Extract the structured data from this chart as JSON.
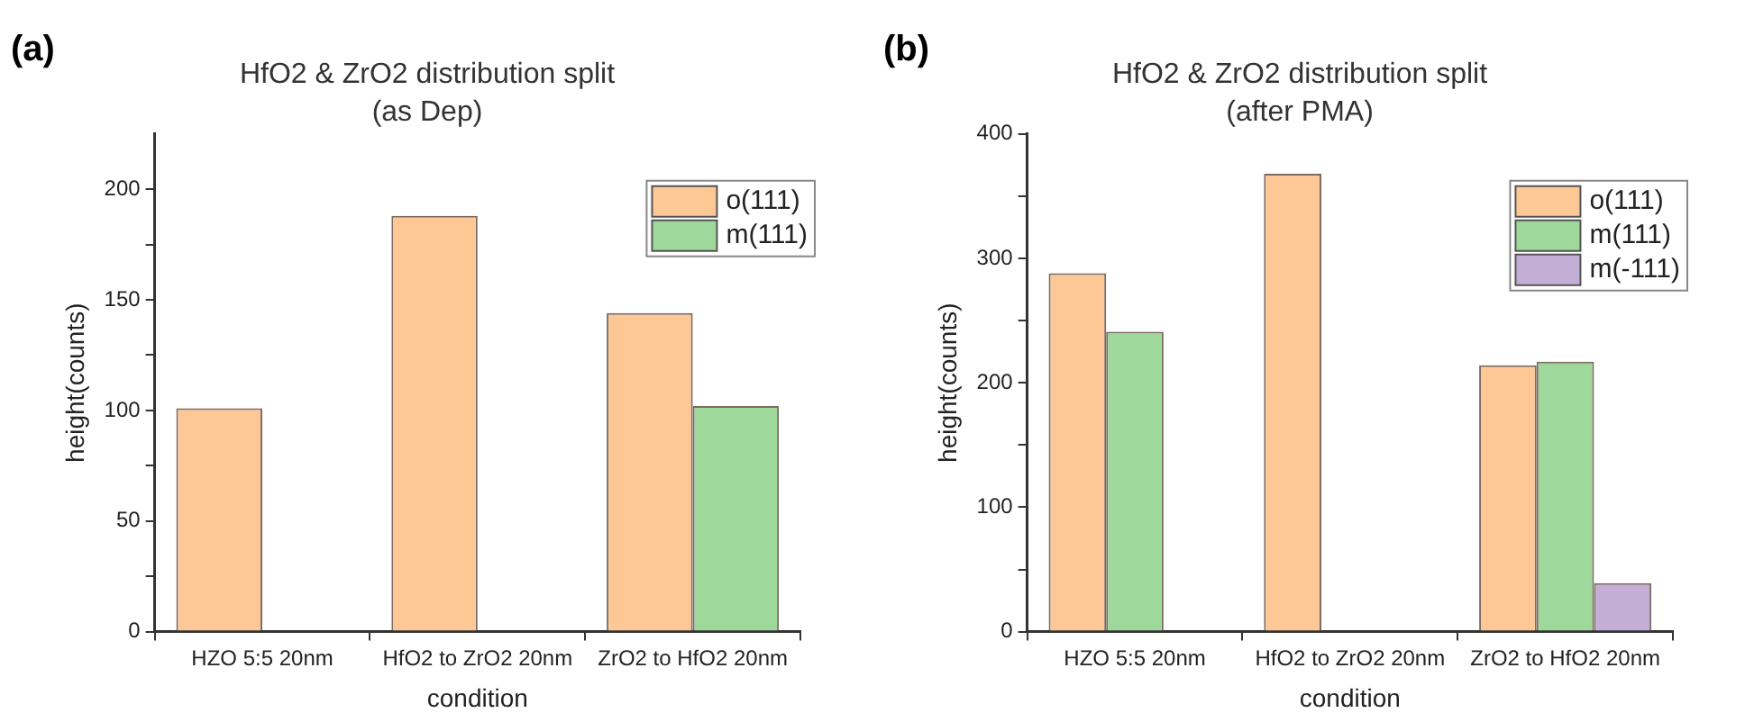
{
  "chart_data": [
    {
      "type": "bar",
      "title": "HfO2 & ZrO2 distribution split",
      "subtitle": "(as Dep)",
      "xlabel": "condition",
      "ylabel": "height(counts)",
      "annotations": [
        "(a)"
      ],
      "categories": [
        "HZO 5:5 20nm",
        "HfO2 to ZrO2 20nm",
        "ZrO2 to HfO2 20nm"
      ],
      "series": [
        {
          "name": "o(111)",
          "color": "#fdc896",
          "values": [
            101,
            188,
            144
          ]
        },
        {
          "name": "m(111)",
          "color": "#9ed99b",
          "values": [
            null,
            null,
            102
          ]
        }
      ],
      "ylim": [
        0,
        225
      ],
      "yticks": [
        0,
        {
          "value": 25,
          "label": null
        },
        50,
        {
          "value": 75,
          "label": null
        },
        100,
        {
          "value": 125,
          "label": null
        },
        150,
        {
          "value": 175,
          "label": null
        },
        200
      ],
      "grid": false,
      "legend": "top right"
    },
    {
      "type": "bar",
      "title": "HfO2 & ZrO2 distribution split",
      "subtitle": "(after PMA)",
      "xlabel": "condition",
      "ylabel": "height(counts)",
      "annotations": [
        "(b)"
      ],
      "categories": [
        "HZO 5:5 20nm",
        "HfO2 to ZrO2 20nm",
        "ZrO2 to HfO2 20nm"
      ],
      "series": [
        {
          "name": "o(111)",
          "color": "#fdc896",
          "values": [
            288,
            368,
            214
          ]
        },
        {
          "name": "m(111)",
          "color": "#9ed99b",
          "values": [
            241,
            null,
            217
          ]
        },
        {
          "name": "m(-111)",
          "color": "#c3afd6",
          "values": [
            null,
            null,
            39
          ]
        }
      ],
      "ylim": [
        0,
        400
      ],
      "yticks": [
        0,
        {
          "value": 50,
          "label": null
        },
        100,
        {
          "value": 150,
          "label": null
        },
        200,
        {
          "value": 250,
          "label": null
        },
        300,
        {
          "value": 350,
          "label": null
        },
        400
      ],
      "grid": false,
      "legend": "top right"
    }
  ]
}
